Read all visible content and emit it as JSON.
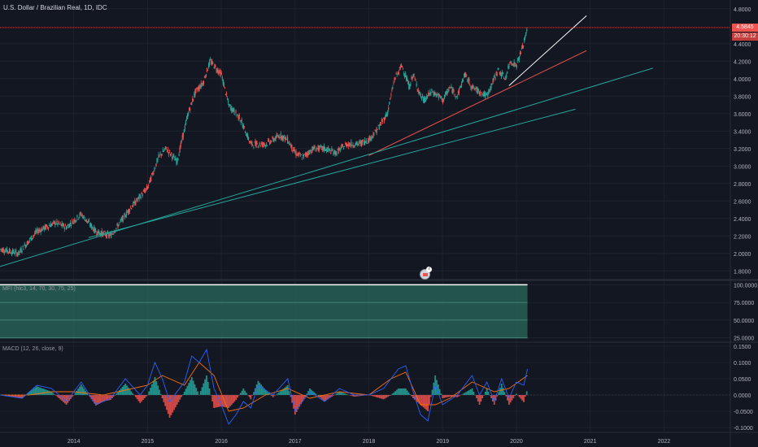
{
  "title": "U.S. Dollar / Brazilian Real, 1D, IDC",
  "price_tag": {
    "value": "4.5845",
    "countdown": "20:30:12",
    "color": "#f05350"
  },
  "mfi_label": "MFI (hlc3, 14, 70, 30, 75, 25)",
  "macd_label": "MACD (12, 26, close, 9)",
  "event_badge": "7",
  "colors": {
    "up": "#26a69a",
    "down": "#ef5350",
    "macd": "#2962ff",
    "signal": "#ff6d00",
    "mfi_fill": "#2a6b5c",
    "background": "#131722"
  },
  "chart_data": [
    {
      "type": "line",
      "title": "U.S. Dollar / Brazilian Real, 1D, IDC",
      "y_ticks": [
        "4.8000",
        "4.4000",
        "4.2000",
        "4.0000",
        "3.8000",
        "3.6000",
        "3.4000",
        "3.2000",
        "3.0000",
        "2.8000",
        "2.6000",
        "2.4000",
        "2.2000",
        "2.0000",
        "1.8000"
      ],
      "x_ticks": [
        "2014",
        "2015",
        "2016",
        "2017",
        "2018",
        "2019",
        "2020",
        "2021",
        "2022"
      ],
      "ylim": [
        1.7,
        4.9
      ],
      "xlim": [
        2013.0,
        2022.9
      ],
      "series": [
        {
          "x": [
            2013.0,
            2013.25,
            2013.5,
            2013.75,
            2013.9,
            2014.1,
            2014.3,
            2014.5,
            2014.75,
            2014.9,
            2015.0,
            2015.15,
            2015.25,
            2015.4,
            2015.55,
            2015.65,
            2015.75,
            2015.85,
            2016.0,
            2016.1,
            2016.25,
            2016.4,
            2016.6,
            2016.8,
            2016.9,
            2017.0,
            2017.1,
            2017.25,
            2017.4,
            2017.55,
            2017.7,
            2017.85,
            2018.0,
            2018.1,
            2018.25,
            2018.35,
            2018.45,
            2018.55,
            2018.6,
            2018.7,
            2018.75,
            2018.85,
            2018.95,
            2019.0,
            2019.1,
            2019.2,
            2019.3,
            2019.4,
            2019.5,
            2019.6,
            2019.75,
            2019.85,
            2019.92,
            2020.0,
            2020.1,
            2020.15
          ],
          "y": [
            2.05,
            2.0,
            2.25,
            2.35,
            2.3,
            2.45,
            2.25,
            2.2,
            2.5,
            2.65,
            2.75,
            3.1,
            3.2,
            3.05,
            3.6,
            3.85,
            3.95,
            4.2,
            4.05,
            3.7,
            3.55,
            3.25,
            3.25,
            3.35,
            3.3,
            3.15,
            3.1,
            3.2,
            3.2,
            3.15,
            3.25,
            3.25,
            3.3,
            3.4,
            3.6,
            4.0,
            4.15,
            3.9,
            4.05,
            3.8,
            3.75,
            3.85,
            3.8,
            3.75,
            3.9,
            3.8,
            4.05,
            3.9,
            3.85,
            3.8,
            4.1,
            4.0,
            4.2,
            4.15,
            4.4,
            4.5845
          ]
        }
      ],
      "trendlines": [
        {
          "color": "#ffffff",
          "from": [
            2019.9,
            3.92
          ],
          "to": [
            2020.95,
            4.72
          ]
        },
        {
          "color": "#ef5350",
          "from": [
            2018.0,
            3.12
          ],
          "to": [
            2020.95,
            4.32
          ]
        },
        {
          "color": "#26a69a",
          "from": [
            2013.0,
            1.85
          ],
          "to": [
            2021.85,
            4.12
          ]
        },
        {
          "color": "#26a69a",
          "from": [
            2014.2,
            2.18
          ],
          "to": [
            2020.8,
            3.65
          ]
        }
      ]
    },
    {
      "type": "area",
      "title": "MFI (hlc3, 14, 70, 30, 75, 25)",
      "y_ticks": [
        "100.0000",
        "75.0000",
        "50.0000",
        "25.0000"
      ],
      "ylim": [
        20,
        105
      ],
      "bands": [
        75,
        50,
        25
      ],
      "values_note": "",
      "x": [
        2013.0,
        2020.15
      ],
      "y": [
        100,
        100
      ]
    },
    {
      "type": "line",
      "title": "MACD (12, 26, close, 9)",
      "y_ticks": [
        "0.1500",
        "0.1000",
        "0.0500",
        "0.0000",
        "-0.0500",
        "-0.1000"
      ],
      "ylim": [
        -0.11,
        0.16
      ],
      "series": [
        {
          "name": "MACD",
          "x": [
            2013.0,
            2013.3,
            2013.5,
            2013.7,
            2013.9,
            2014.1,
            2014.3,
            2014.5,
            2014.7,
            2014.9,
            2015.0,
            2015.1,
            2015.2,
            2015.3,
            2015.5,
            2015.6,
            2015.7,
            2015.8,
            2015.9,
            2016.0,
            2016.1,
            2016.2,
            2016.3,
            2016.4,
            2016.5,
            2016.7,
            2016.9,
            2017.0,
            2017.2,
            2017.4,
            2017.6,
            2017.8,
            2018.0,
            2018.2,
            2018.4,
            2018.5,
            2018.6,
            2018.7,
            2018.8,
            2018.9,
            2019.0,
            2019.2,
            2019.4,
            2019.5,
            2019.6,
            2019.7,
            2019.8,
            2019.9,
            2020.0,
            2020.1,
            2020.15
          ],
          "y": [
            0.0,
            -0.01,
            0.03,
            0.02,
            -0.02,
            0.04,
            -0.03,
            -0.01,
            0.05,
            0.0,
            0.03,
            0.1,
            0.05,
            -0.02,
            0.04,
            0.12,
            0.1,
            0.14,
            0.02,
            -0.03,
            -0.09,
            -0.06,
            -0.02,
            -0.04,
            0.03,
            0.0,
            0.05,
            -0.05,
            0.01,
            -0.02,
            0.02,
            0.0,
            0.0,
            0.02,
            0.08,
            0.09,
            0.01,
            -0.06,
            -0.08,
            0.03,
            -0.03,
            0.0,
            0.06,
            0.0,
            0.04,
            -0.02,
            0.05,
            -0.01,
            0.04,
            0.03,
            0.08
          ]
        },
        {
          "name": "Signal",
          "x": [
            2013.0,
            2013.4,
            2013.7,
            2014.0,
            2014.4,
            2014.8,
            2015.0,
            2015.2,
            2015.5,
            2015.7,
            2015.9,
            2016.1,
            2016.3,
            2016.6,
            2016.9,
            2017.2,
            2017.6,
            2018.0,
            2018.3,
            2018.5,
            2018.7,
            2018.9,
            2019.1,
            2019.4,
            2019.7,
            2019.9,
            2020.15
          ],
          "y": [
            0.0,
            0.0,
            0.01,
            0.01,
            0.0,
            0.02,
            0.03,
            0.06,
            0.03,
            0.1,
            0.06,
            -0.05,
            -0.04,
            0.0,
            0.02,
            -0.01,
            0.01,
            0.0,
            0.05,
            0.07,
            -0.03,
            -0.03,
            -0.01,
            0.04,
            0.01,
            0.02,
            0.06
          ]
        }
      ]
    }
  ]
}
